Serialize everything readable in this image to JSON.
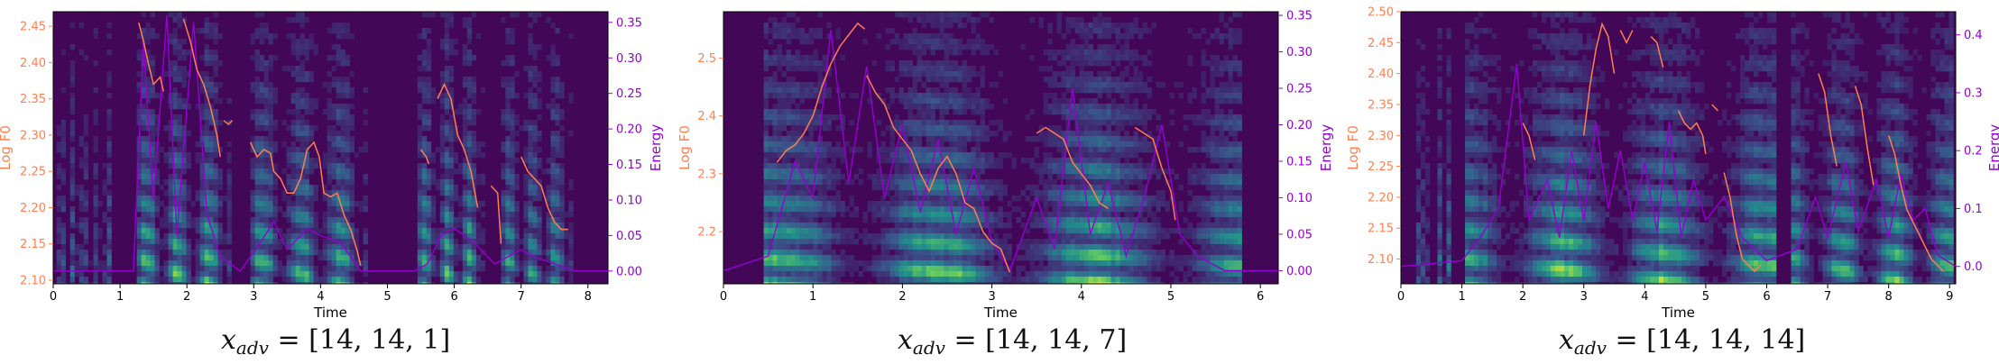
{
  "colors": {
    "f0": "#ff7f50",
    "energy": "#9400d3"
  },
  "panels": [
    {
      "caption": {
        "var": "x",
        "sub": "adv",
        "rhs": "= [14, 14, 1]"
      },
      "chart_data": {
        "type": "spectrogram-with-lines",
        "xlabel": "Time",
        "ylabel_left": "Log F0",
        "ylabel_right": "Energy",
        "xlim": [
          0,
          8.3
        ],
        "ylim_left": [
          2.095,
          2.47
        ],
        "ylim_right": [
          -0.018,
          0.365
        ],
        "xticks": [
          "0",
          "1",
          "2",
          "3",
          "4",
          "5",
          "6",
          "7",
          "8"
        ],
        "yticks_left": [
          "2.10",
          "2.15",
          "2.20",
          "2.25",
          "2.30",
          "2.35",
          "2.40",
          "2.45"
        ],
        "yticks_right": [
          "0.00",
          "0.05",
          "0.10",
          "0.15",
          "0.20",
          "0.25",
          "0.30",
          "0.35"
        ],
        "segments": [
          [
            0.05,
            0.55,
            0.45
          ],
          [
            0.6,
            0.85,
            0.6
          ],
          [
            1.25,
            2.65,
            1.0
          ],
          [
            2.95,
            4.7,
            0.9
          ],
          [
            5.45,
            6.45,
            0.9
          ],
          [
            6.7,
            7.75,
            0.8
          ]
        ],
        "f0": [
          [
            [
              1.28,
              2.455
            ],
            [
              1.35,
              2.43
            ],
            [
              1.42,
              2.4
            ],
            [
              1.5,
              2.37
            ],
            [
              1.6,
              2.38
            ],
            [
              1.65,
              2.36
            ]
          ],
          [
            [
              1.95,
              2.46
            ],
            [
              2.05,
              2.43
            ],
            [
              2.15,
              2.39
            ],
            [
              2.25,
              2.37
            ],
            [
              2.35,
              2.34
            ],
            [
              2.45,
              2.3
            ],
            [
              2.5,
              2.27
            ]
          ],
          [
            [
              2.55,
              2.32
            ],
            [
              2.62,
              2.315
            ],
            [
              2.68,
              2.32
            ]
          ],
          [
            [
              2.95,
              2.29
            ],
            [
              3.05,
              2.27
            ],
            [
              3.15,
              2.28
            ],
            [
              3.25,
              2.275
            ],
            [
              3.3,
              2.25
            ],
            [
              3.4,
              2.24
            ],
            [
              3.5,
              2.22
            ],
            [
              3.6,
              2.22
            ],
            [
              3.7,
              2.24
            ],
            [
              3.8,
              2.28
            ],
            [
              3.9,
              2.29
            ],
            [
              3.98,
              2.27
            ],
            [
              4.05,
              2.22
            ],
            [
              4.15,
              2.215
            ],
            [
              4.25,
              2.22
            ],
            [
              4.35,
              2.19
            ],
            [
              4.45,
              2.17
            ],
            [
              4.55,
              2.14
            ],
            [
              4.6,
              2.12
            ]
          ],
          [
            [
              5.5,
              2.28
            ],
            [
              5.58,
              2.27
            ],
            [
              5.62,
              2.26
            ]
          ],
          [
            [
              5.75,
              2.35
            ],
            [
              5.85,
              2.37
            ],
            [
              5.95,
              2.35
            ],
            [
              6.05,
              2.3
            ],
            [
              6.15,
              2.28
            ],
            [
              6.25,
              2.25
            ],
            [
              6.35,
              2.2
            ]
          ],
          [
            [
              6.55,
              2.23
            ],
            [
              6.65,
              2.22
            ],
            [
              6.7,
              2.15
            ]
          ],
          [
            [
              7.0,
              2.27
            ],
            [
              7.1,
              2.25
            ],
            [
              7.2,
              2.24
            ],
            [
              7.3,
              2.23
            ],
            [
              7.4,
              2.2
            ],
            [
              7.5,
              2.18
            ],
            [
              7.6,
              2.17
            ],
            [
              7.7,
              2.17
            ]
          ]
        ],
        "energy": [
          [
            0,
            0
          ],
          [
            1.2,
            0
          ],
          [
            1.35,
            0.32
          ],
          [
            1.5,
            0.1
          ],
          [
            1.7,
            0.36
          ],
          [
            1.85,
            0.05
          ],
          [
            2.1,
            0.35
          ],
          [
            2.3,
            0.08
          ],
          [
            2.5,
            0.02
          ],
          [
            2.8,
            0
          ],
          [
            3.1,
            0.04
          ],
          [
            3.3,
            0.07
          ],
          [
            3.5,
            0.03
          ],
          [
            3.8,
            0.06
          ],
          [
            4.0,
            0.05
          ],
          [
            4.3,
            0.04
          ],
          [
            4.6,
            0.0
          ],
          [
            5.4,
            0.0
          ],
          [
            5.6,
            0.01
          ],
          [
            5.8,
            0.05
          ],
          [
            6.0,
            0.06
          ],
          [
            6.3,
            0.04
          ],
          [
            6.6,
            0.01
          ],
          [
            6.8,
            0.02
          ],
          [
            7.0,
            0.03
          ],
          [
            7.2,
            0.02
          ],
          [
            7.5,
            0.01
          ],
          [
            7.8,
            0.0
          ],
          [
            8.3,
            0.0
          ]
        ]
      }
    },
    {
      "caption": {
        "var": "x",
        "sub": "adv",
        "rhs": "= [14, 14, 7]"
      },
      "chart_data": {
        "type": "spectrogram-with-lines",
        "xlabel": "Time",
        "ylabel_left": "Log F0",
        "ylabel_right": "Energy",
        "xlim": [
          0,
          6.2
        ],
        "ylim_left": [
          2.11,
          2.58
        ],
        "ylim_right": [
          -0.018,
          0.355
        ],
        "xticks": [
          "0",
          "1",
          "2",
          "3",
          "4",
          "5",
          "6"
        ],
        "yticks_left": [
          "2.2",
          "2.3",
          "2.4",
          "2.5"
        ],
        "yticks_right": [
          "0.00",
          "0.05",
          "0.10",
          "0.15",
          "0.20",
          "0.25",
          "0.30",
          "0.35"
        ],
        "segments": [
          [
            0.45,
            5.75,
            1.0
          ]
        ],
        "f0": [
          [
            [
              0.6,
              2.32
            ],
            [
              0.7,
              2.34
            ],
            [
              0.8,
              2.35
            ],
            [
              0.9,
              2.37
            ],
            [
              1.0,
              2.4
            ],
            [
              1.1,
              2.45
            ],
            [
              1.2,
              2.49
            ],
            [
              1.3,
              2.52
            ],
            [
              1.4,
              2.54
            ],
            [
              1.5,
              2.56
            ],
            [
              1.58,
              2.55
            ]
          ],
          [
            [
              1.6,
              2.47
            ],
            [
              1.7,
              2.44
            ],
            [
              1.8,
              2.42
            ],
            [
              1.9,
              2.38
            ],
            [
              2.0,
              2.36
            ],
            [
              2.1,
              2.34
            ],
            [
              2.2,
              2.3
            ],
            [
              2.3,
              2.27
            ],
            [
              2.4,
              2.31
            ],
            [
              2.5,
              2.33
            ],
            [
              2.6,
              2.3
            ],
            [
              2.7,
              2.25
            ],
            [
              2.8,
              2.24
            ],
            [
              2.9,
              2.2
            ],
            [
              3.0,
              2.18
            ],
            [
              3.1,
              2.17
            ],
            [
              3.2,
              2.13
            ]
          ],
          [
            [
              3.5,
              2.37
            ],
            [
              3.6,
              2.38
            ],
            [
              3.7,
              2.37
            ],
            [
              3.8,
              2.36
            ],
            [
              3.9,
              2.32
            ],
            [
              4.0,
              2.3
            ],
            [
              4.1,
              2.28
            ],
            [
              4.2,
              2.25
            ],
            [
              4.3,
              2.24
            ]
          ],
          [
            [
              4.6,
              2.38
            ],
            [
              4.7,
              2.37
            ],
            [
              4.8,
              2.36
            ],
            [
              4.9,
              2.31
            ],
            [
              5.0,
              2.27
            ],
            [
              5.05,
              2.22
            ]
          ]
        ],
        "energy": [
          [
            0,
            0
          ],
          [
            0.5,
            0.02
          ],
          [
            0.8,
            0.15
          ],
          [
            1.0,
            0.1
          ],
          [
            1.2,
            0.33
          ],
          [
            1.4,
            0.12
          ],
          [
            1.6,
            0.28
          ],
          [
            1.8,
            0.1
          ],
          [
            2.0,
            0.2
          ],
          [
            2.2,
            0.08
          ],
          [
            2.4,
            0.18
          ],
          [
            2.6,
            0.05
          ],
          [
            2.8,
            0.14
          ],
          [
            3.0,
            0.04
          ],
          [
            3.2,
            0.0
          ],
          [
            3.5,
            0.1
          ],
          [
            3.7,
            0.03
          ],
          [
            3.9,
            0.25
          ],
          [
            4.1,
            0.05
          ],
          [
            4.3,
            0.12
          ],
          [
            4.5,
            0.02
          ],
          [
            4.7,
            0.1
          ],
          [
            4.9,
            0.2
          ],
          [
            5.1,
            0.05
          ],
          [
            5.3,
            0.02
          ],
          [
            5.6,
            0.0
          ],
          [
            6.2,
            0.0
          ]
        ]
      }
    },
    {
      "caption": {
        "var": "x",
        "sub": "adv",
        "rhs": "= [14, 14, 14]"
      },
      "chart_data": {
        "type": "spectrogram-with-lines",
        "xlabel": "Time",
        "ylabel_left": "Log F0",
        "ylabel_right": "Energy",
        "xlim": [
          0,
          9.1
        ],
        "ylim_left": [
          2.06,
          2.5
        ],
        "ylim_right": [
          -0.03,
          0.44
        ],
        "xticks": [
          "0",
          "1",
          "2",
          "3",
          "4",
          "5",
          "6",
          "7",
          "8",
          "9"
        ],
        "yticks_left": [
          "2.10",
          "2.15",
          "2.20",
          "2.25",
          "2.30",
          "2.35",
          "2.40",
          "2.45",
          "2.50"
        ],
        "yticks_right": [
          "0.0",
          "0.1",
          "0.2",
          "0.3",
          "0.4"
        ],
        "segments": [
          [
            0.25,
            0.45,
            0.4
          ],
          [
            0.6,
            0.75,
            0.5
          ],
          [
            1.05,
            6.1,
            1.0
          ],
          [
            6.4,
            9.0,
            0.95
          ]
        ],
        "f0": [
          [
            [
              2.0,
              2.32
            ],
            [
              2.1,
              2.3
            ],
            [
              2.2,
              2.26
            ]
          ],
          [
            [
              3.0,
              2.3
            ],
            [
              3.1,
              2.38
            ],
            [
              3.2,
              2.44
            ],
            [
              3.3,
              2.48
            ],
            [
              3.4,
              2.46
            ],
            [
              3.5,
              2.4
            ]
          ],
          [
            [
              3.6,
              2.47
            ],
            [
              3.7,
              2.45
            ],
            [
              3.8,
              2.47
            ]
          ],
          [
            [
              4.1,
              2.46
            ],
            [
              4.2,
              2.45
            ],
            [
              4.3,
              2.41
            ]
          ],
          [
            [
              4.55,
              2.34
            ],
            [
              4.65,
              2.32
            ],
            [
              4.75,
              2.31
            ],
            [
              4.85,
              2.32
            ],
            [
              4.95,
              2.3
            ],
            [
              5.0,
              2.27
            ]
          ],
          [
            [
              5.1,
              2.35
            ],
            [
              5.2,
              2.34
            ]
          ],
          [
            [
              5.3,
              2.24
            ],
            [
              5.4,
              2.2
            ],
            [
              5.5,
              2.14
            ],
            [
              5.6,
              2.1
            ],
            [
              5.7,
              2.09
            ],
            [
              5.8,
              2.08
            ],
            [
              5.9,
              2.09
            ]
          ],
          [
            [
              6.85,
              2.4
            ],
            [
              6.95,
              2.37
            ],
            [
              7.05,
              2.3
            ],
            [
              7.15,
              2.25
            ]
          ],
          [
            [
              7.45,
              2.38
            ],
            [
              7.55,
              2.35
            ],
            [
              7.65,
              2.28
            ],
            [
              7.75,
              2.22
            ]
          ],
          [
            [
              8.0,
              2.3
            ],
            [
              8.1,
              2.27
            ],
            [
              8.2,
              2.22
            ],
            [
              8.3,
              2.18
            ],
            [
              8.4,
              2.16
            ],
            [
              8.5,
              2.14
            ],
            [
              8.6,
              2.12
            ],
            [
              8.7,
              2.1
            ],
            [
              8.8,
              2.09
            ],
            [
              8.9,
              2.08
            ]
          ]
        ],
        "energy": [
          [
            0,
            0
          ],
          [
            1.0,
            0.01
          ],
          [
            1.3,
            0.05
          ],
          [
            1.6,
            0.1
          ],
          [
            1.9,
            0.35
          ],
          [
            2.1,
            0.08
          ],
          [
            2.4,
            0.15
          ],
          [
            2.6,
            0.05
          ],
          [
            2.8,
            0.2
          ],
          [
            3.0,
            0.08
          ],
          [
            3.2,
            0.25
          ],
          [
            3.4,
            0.1
          ],
          [
            3.6,
            0.2
          ],
          [
            3.8,
            0.08
          ],
          [
            4.0,
            0.18
          ],
          [
            4.2,
            0.06
          ],
          [
            4.4,
            0.25
          ],
          [
            4.6,
            0.05
          ],
          [
            4.8,
            0.15
          ],
          [
            5.0,
            0.08
          ],
          [
            5.3,
            0.12
          ],
          [
            5.6,
            0.05
          ],
          [
            6.0,
            0.01
          ],
          [
            6.5,
            0.03
          ],
          [
            6.8,
            0.12
          ],
          [
            7.0,
            0.05
          ],
          [
            7.3,
            0.18
          ],
          [
            7.5,
            0.06
          ],
          [
            7.8,
            0.15
          ],
          [
            8.0,
            0.05
          ],
          [
            8.2,
            0.16
          ],
          [
            8.4,
            0.08
          ],
          [
            8.6,
            0.1
          ],
          [
            8.8,
            0.02
          ],
          [
            9.1,
            0.0
          ]
        ]
      }
    }
  ]
}
